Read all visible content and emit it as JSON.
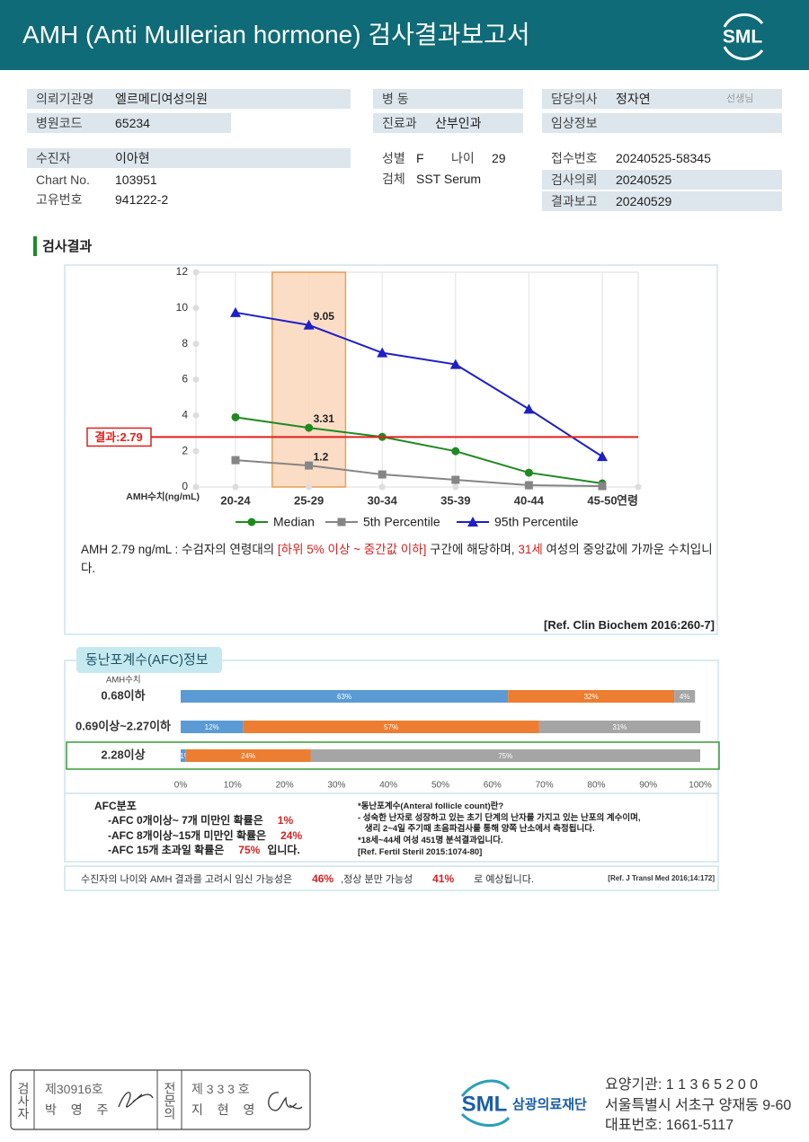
{
  "header": {
    "title": "AMH (Anti Mullerian hormone) 검사결과보고서",
    "logo": "SML"
  },
  "info": [
    {
      "label": "의뢰기관명",
      "value": "엘르메디여성의원"
    },
    {
      "label": "병원코드",
      "value": "65234"
    },
    {
      "label": "수진자",
      "value": "이아현"
    },
    {
      "label": "Chart No.",
      "value": "103951"
    },
    {
      "label": "고유번호",
      "value": "941222-2"
    },
    {
      "label": "병 동"
    },
    {
      "label": "진료과",
      "value": "산부인과"
    },
    {
      "label": "성별",
      "value": "F"
    },
    {
      "label": "나이",
      "value": "29"
    },
    {
      "label": "검체",
      "value": "SST Serum"
    },
    {
      "label": "담당의사",
      "value": "정자연",
      "suffix": "선생님"
    },
    {
      "label": "임상정보"
    },
    {
      "label": "접수번호",
      "value": "20240525-58345"
    },
    {
      "label": "검사의뢰",
      "value": "20240525"
    },
    {
      "label": "결과보고",
      "value": "20240529"
    }
  ],
  "section_title": "검사결과",
  "amh_chart": {
    "type": "line",
    "categories": [
      "20-24",
      "25-29",
      "30-34",
      "35-39",
      "40-44",
      "45-50"
    ],
    "x_suffix": "연령",
    "ylabel": "AMH수치(ng/mL)",
    "ylim": [
      0,
      12
    ],
    "yticks": [
      0,
      2,
      4,
      6,
      8,
      10,
      12
    ],
    "grid": true,
    "highlight_index": 1,
    "highlight_color": "#fbd8bd",
    "series": [
      {
        "name": "Median",
        "color": "#1f8a1f",
        "marker": "circle",
        "values": [
          3.9,
          3.31,
          2.8,
          2.0,
          0.8,
          0.2
        ],
        "value_labels": [
          null,
          "3.31",
          null,
          null,
          null,
          null
        ]
      },
      {
        "name": "5th Percentile",
        "color": "#858585",
        "marker": "square",
        "values": [
          1.5,
          1.2,
          0.7,
          0.4,
          0.1,
          0.05
        ],
        "value_labels": [
          null,
          "1.2",
          null,
          null,
          null,
          null
        ]
      },
      {
        "name": "95th Percentile",
        "color": "#1f1fc8",
        "marker": "triangle",
        "values": [
          9.75,
          9.05,
          7.5,
          6.85,
          4.35,
          1.7
        ],
        "value_labels": [
          null,
          "9.05",
          null,
          null,
          null,
          null
        ]
      }
    ],
    "result": {
      "label": "결과:2.79",
      "value": 2.79,
      "color": "#e0201c"
    },
    "comment": [
      {
        "text": "AMH  2.79 ng/mL : 수검자의 연령대의 "
      },
      {
        "text": "[하위 5% 이상 ~ 중간값 이하]",
        "color": "#d62020"
      },
      {
        "text": "  구간에 해당하며, "
      },
      {
        "text": "31세",
        "color": "#d62020"
      },
      {
        "text": " 여성의 중앙값에 가까운 수치입니다."
      }
    ],
    "reference": "[Ref. Clin Biochem 2016:260-7]"
  },
  "afc": {
    "type": "bar",
    "orientation": "horizontal",
    "stacked": true,
    "title": "동난포계수(AFC)정보",
    "ylabel": "AMH수치",
    "categories": [
      "0.68이하",
      "0.69이상~2.27이하",
      "2.28이상"
    ],
    "highlight_index": 2,
    "series": [
      {
        "color": "#5b9bd5",
        "values": [
          63,
          12,
          1
        ],
        "value_labels": [
          "63%",
          "12%",
          "1%"
        ]
      },
      {
        "color": "#ed7d31",
        "values": [
          32,
          57,
          24
        ],
        "value_labels": [
          "32%",
          "57%",
          "24%"
        ]
      },
      {
        "color": "#a5a5a5",
        "values": [
          4,
          31,
          75
        ],
        "value_labels": [
          "4%",
          "31%",
          "75%"
        ]
      }
    ],
    "xlim": [
      0,
      100
    ],
    "xticks": [
      {
        "value": 0,
        "label": "0%"
      },
      {
        "value": 10,
        "label": "10%"
      },
      {
        "value": 20,
        "label": "20%"
      },
      {
        "value": 30,
        "label": "30%"
      },
      {
        "value": 40,
        "label": "40%"
      },
      {
        "value": 50,
        "label": "50%"
      },
      {
        "value": 60,
        "label": "60%"
      },
      {
        "value": 70,
        "label": "70%"
      },
      {
        "value": 80,
        "label": "80%"
      },
      {
        "value": 90,
        "label": "90%"
      },
      {
        "value": 100,
        "label": "100%"
      }
    ]
  },
  "afc_distribution": {
    "title": "AFC분포",
    "lines": [
      {
        "text": "-AFC  0개이상~ 7개 미만인 확률은",
        "value": "1%"
      },
      {
        "text": "-AFC  8개이상~15개 미만인 확률은",
        "value": "24%"
      },
      {
        "text": "-AFC  15개 초과일 확률은",
        "value": "75%",
        "suffix": "입니다."
      }
    ],
    "notes": [
      "*동난포계수(Anteral follicle count)란?",
      "- 성숙한 난자로 성장하고 있는 초기 단계의 난자를 가지고 있는 난포의 계수이며,",
      "   생리 2~4일 주기때 초음파검사를 통해 양쪽 난소에서 측정됩니다.",
      "*18세~44세 여성 451명 분석결과입니다.",
      "[Ref. Fertil Steril 2015:1074-80]"
    ]
  },
  "prognosis": {
    "parts": [
      {
        "text": "수진자의 나이와 AMH 결과를 고려시 임신 가능성은"
      },
      {
        "text": "46%",
        "color": "#d62020"
      },
      {
        "text": ",정상 분만 가능성"
      },
      {
        "text": "41%",
        "color": "#d62020"
      },
      {
        "text": "로 예상됩니다."
      }
    ],
    "reference": "[Ref. J Transl Med 2016;14:172]"
  },
  "footer": {
    "signatures": [
      {
        "role": "검사자",
        "number": "제30916호",
        "name": "박 영 주"
      },
      {
        "role": "전문의",
        "number": "제 3 3 3 호",
        "name": "지 현 영"
      }
    ],
    "logo": "SML",
    "org": "삼광의료재단",
    "contacts": [
      "요양기관: 1 1 3 6 5 2 0 0",
      "서울특별시 서초구 양재동 9-60",
      "대표번호: 1661-5117"
    ]
  }
}
